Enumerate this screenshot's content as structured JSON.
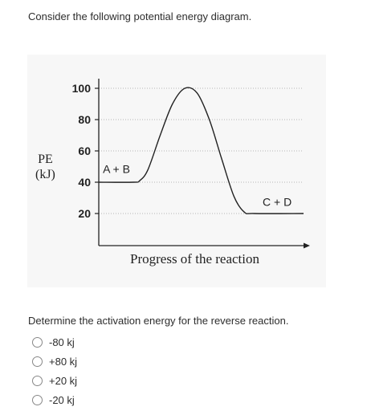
{
  "prompt": "Consider the following potential energy diagram.",
  "question": "Determine the activation energy for the reverse reaction.",
  "options": [
    "-80 kj",
    "+80 kj",
    "+20 kj",
    "-20 kj"
  ],
  "chart_data": {
    "type": "line",
    "ylabel_line1": "PE",
    "ylabel_line2": "(kJ)",
    "xlabel": "Progress of the reaction",
    "ylim": [
      0,
      105
    ],
    "yticks": [
      100,
      80,
      60,
      40,
      20
    ],
    "grid": true,
    "series": [
      {
        "x": [
          0,
          0.17,
          0.2,
          0.24,
          0.3,
          0.36,
          0.42,
          0.48,
          0.54,
          0.6,
          0.66,
          0.71,
          0.76,
          1.0
        ],
        "y": [
          40,
          40,
          41,
          48,
          70,
          90,
          100,
          97,
          80,
          55,
          31,
          21,
          20,
          20
        ]
      }
    ],
    "annotations": [
      {
        "text": "A + B",
        "x": 0.02,
        "y": 46
      },
      {
        "text": "C + D",
        "x": 0.8,
        "y": 25
      }
    ],
    "line_color": "#222222"
  }
}
